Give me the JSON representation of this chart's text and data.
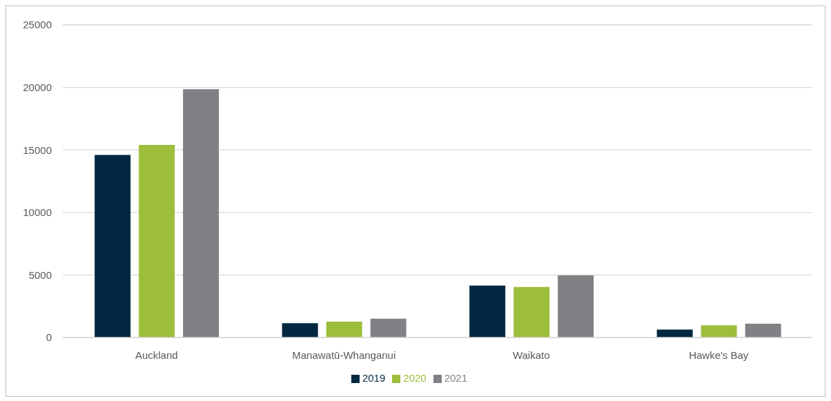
{
  "chart_data": {
    "type": "bar",
    "categories": [
      "Auckland",
      "Manawatū-Whanganui",
      "Waikato",
      "Hawke's Bay"
    ],
    "series": [
      {
        "name": "2019",
        "color": "#012840",
        "values": [
          14600,
          1150,
          4150,
          630
        ]
      },
      {
        "name": "2020",
        "color": "#9dbe3b",
        "values": [
          15400,
          1270,
          4040,
          980
        ]
      },
      {
        "name": "2021",
        "color": "#808184",
        "values": [
          19850,
          1500,
          4960,
          1100
        ]
      }
    ],
    "ylim": [
      0,
      25000
    ],
    "yticks": [
      0,
      5000,
      10000,
      15000,
      20000,
      25000
    ],
    "grid": "y",
    "legend": "bottom"
  }
}
